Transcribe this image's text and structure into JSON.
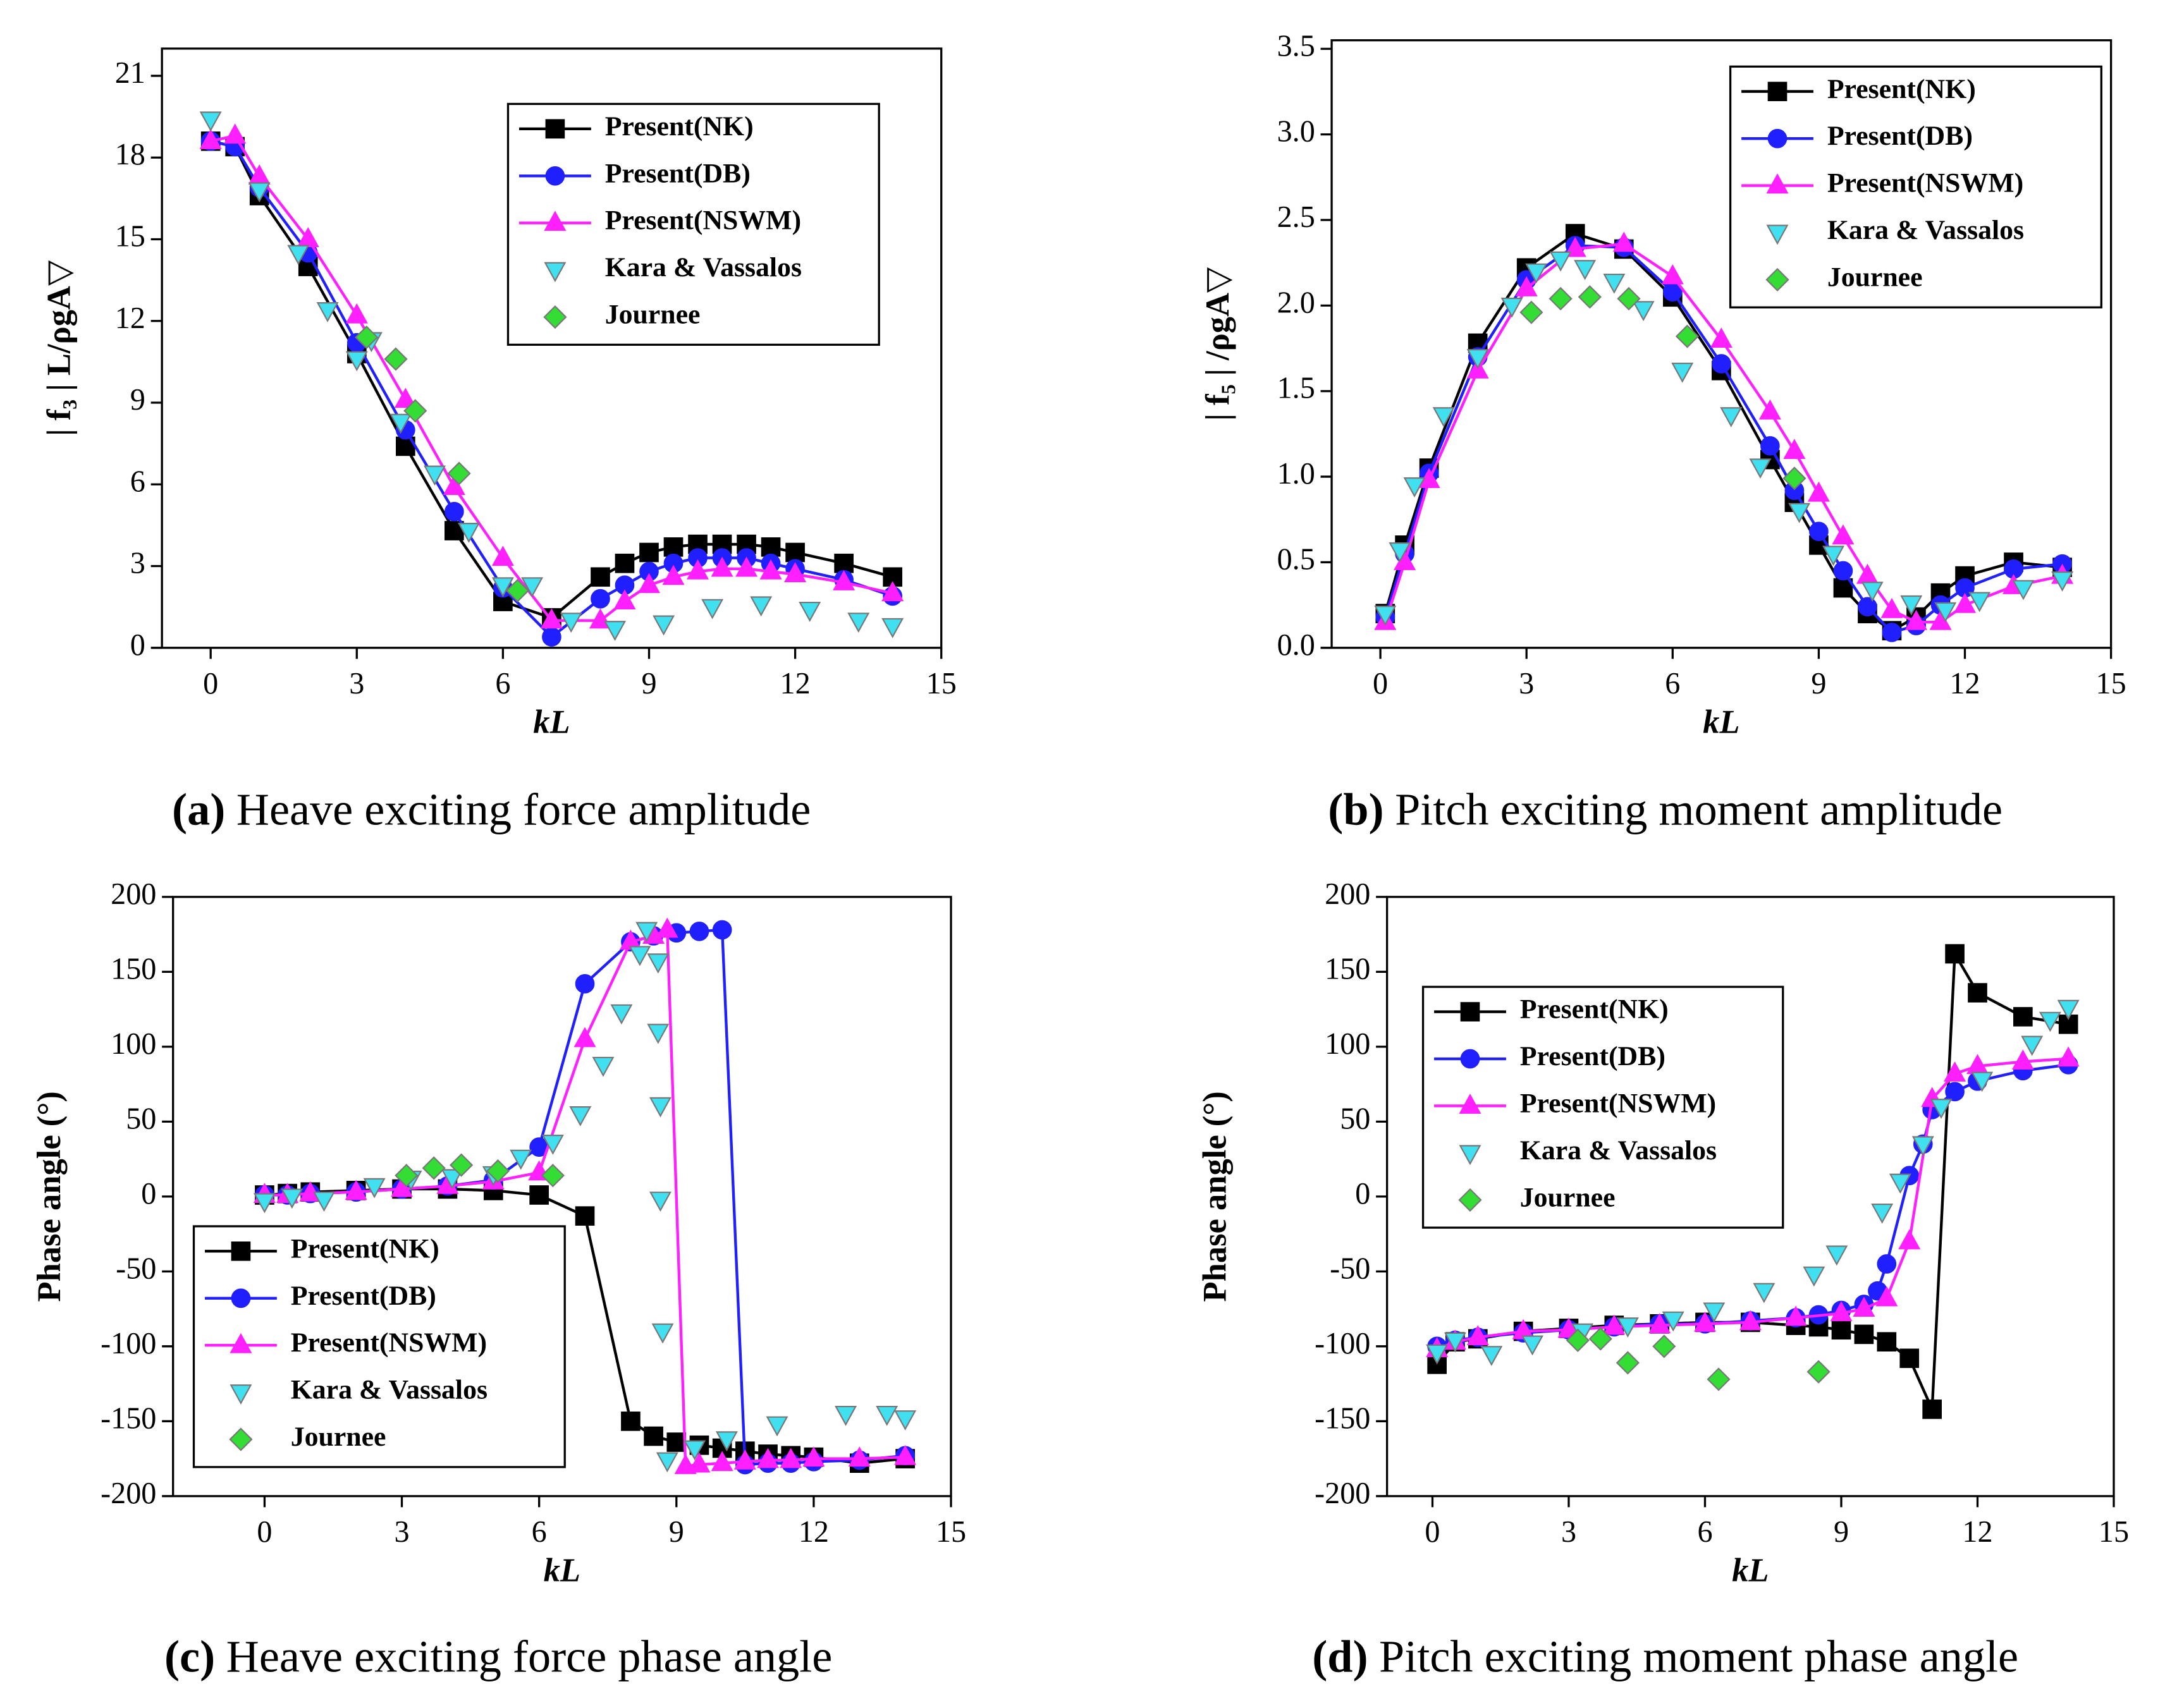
{
  "chart_data": [
    {
      "type": "line",
      "caption_label": "(a)",
      "caption": "Heave exciting force amplitude",
      "x_label": "kL",
      "y_label": "| f₃ | L/ρgA▽",
      "xlim": [
        -1,
        15
      ],
      "xticks": [
        0,
        3,
        6,
        9,
        12,
        15
      ],
      "ylim": [
        0,
        22
      ],
      "yticks": [
        0,
        3,
        6,
        9,
        12,
        15,
        18,
        21
      ],
      "legend": "upper right",
      "series": [
        {
          "name": "Present(NK)",
          "color": "#000000",
          "marker": "square",
          "line": true,
          "x": [
            0,
            0.5,
            1,
            2,
            3,
            4,
            5,
            6,
            7,
            8,
            8.5,
            9,
            9.5,
            10,
            10.5,
            11,
            11.5,
            12,
            13,
            14
          ],
          "values": [
            18.6,
            18.4,
            16.6,
            14.0,
            10.8,
            7.4,
            4.3,
            1.7,
            1.1,
            2.6,
            3.1,
            3.5,
            3.7,
            3.8,
            3.8,
            3.8,
            3.7,
            3.5,
            3.1,
            2.6
          ]
        },
        {
          "name": "Present(DB)",
          "color": "#1f1fff",
          "marker": "circle",
          "line": true,
          "x": [
            0,
            0.5,
            1,
            2,
            3,
            4,
            5,
            6,
            7,
            8,
            8.5,
            9,
            9.5,
            10,
            10.5,
            11,
            11.5,
            12,
            13,
            14
          ],
          "values": [
            18.6,
            18.4,
            16.9,
            14.5,
            11.2,
            8.0,
            5.0,
            2.2,
            0.4,
            1.8,
            2.3,
            2.8,
            3.1,
            3.3,
            3.3,
            3.3,
            3.1,
            2.9,
            2.5,
            1.9
          ]
        },
        {
          "name": "Present(NSWM)",
          "color": "#ff1fff",
          "marker": "triangle",
          "line": true,
          "x": [
            0,
            0.5,
            1,
            2,
            3,
            4,
            5,
            6,
            7,
            8,
            8.5,
            9,
            9.5,
            10,
            10.5,
            11,
            11.5,
            12,
            13,
            14
          ],
          "values": [
            18.6,
            18.8,
            17.3,
            15.0,
            12.2,
            9.1,
            5.9,
            3.3,
            1.0,
            1.0,
            1.7,
            2.3,
            2.6,
            2.8,
            2.9,
            2.9,
            2.8,
            2.7,
            2.4,
            2.0
          ]
        },
        {
          "name": "Kara & Vassalos",
          "color": "#40e0f0",
          "marker": "triangle-down",
          "line": false,
          "x": [
            0,
            1,
            1.8,
            2.4,
            3,
            3.3,
            3.9,
            4.6,
            5.3,
            6,
            6.6,
            7.4,
            8.3,
            9.3,
            10.3,
            11.3,
            12.3,
            13.3,
            14
          ],
          "values": [
            19.4,
            16.8,
            14.5,
            12.4,
            10.6,
            11.3,
            8.3,
            6.4,
            4.3,
            2.3,
            2.3,
            1.0,
            0.7,
            0.9,
            1.5,
            1.6,
            1.4,
            1.0,
            0.8
          ]
        },
        {
          "name": "Journee",
          "color": "#33dd33",
          "marker": "diamond",
          "line": false,
          "x": [
            3.2,
            3.8,
            4.2,
            5.1,
            6.3
          ],
          "values": [
            11.4,
            10.6,
            8.7,
            6.4,
            2.1
          ]
        }
      ]
    },
    {
      "type": "line",
      "caption_label": "(b)",
      "caption": "Pitch exciting moment amplitude",
      "x_label": "kL",
      "y_label": "| f₅ | /ρgA▽",
      "xlim": [
        -1,
        15
      ],
      "xticks": [
        0,
        3,
        6,
        9,
        12,
        15
      ],
      "ylim": [
        0,
        3.55
      ],
      "yticks": [
        {
          "value": 0,
          "label": "0.0"
        },
        0.5,
        {
          "value": 1,
          "label": "1.0"
        },
        1.5,
        {
          "value": 2,
          "label": "2.0"
        },
        2.5,
        {
          "value": 3,
          "label": "3.0"
        },
        3.5
      ],
      "legend": "upper right",
      "series": [
        {
          "name": "Present(NK)",
          "color": "#000000",
          "marker": "square",
          "line": true,
          "x": [
            0.1,
            0.5,
            1,
            2,
            3,
            4,
            5,
            6,
            7,
            8,
            8.5,
            9,
            9.5,
            10,
            10.5,
            11,
            11.5,
            12,
            13,
            14
          ],
          "values": [
            0.2,
            0.6,
            1.05,
            1.78,
            2.22,
            2.42,
            2.33,
            2.05,
            1.62,
            1.1,
            0.85,
            0.6,
            0.35,
            0.2,
            0.1,
            0.18,
            0.32,
            0.42,
            0.5,
            0.47
          ]
        },
        {
          "name": "Present(DB)",
          "color": "#1f1fff",
          "marker": "circle",
          "line": true,
          "x": [
            0.1,
            0.5,
            1,
            2,
            3,
            4,
            5,
            6,
            7,
            8,
            8.5,
            9,
            9.5,
            10,
            10.5,
            11,
            11.5,
            12,
            13,
            14
          ],
          "values": [
            0.18,
            0.55,
            1.02,
            1.7,
            2.15,
            2.35,
            2.34,
            2.08,
            1.66,
            1.18,
            0.92,
            0.68,
            0.45,
            0.24,
            0.09,
            0.13,
            0.25,
            0.35,
            0.46,
            0.49
          ]
        },
        {
          "name": "Present(NSWM)",
          "color": "#ff1fff",
          "marker": "triangle",
          "line": true,
          "x": [
            0.1,
            0.5,
            1,
            2,
            3,
            4,
            5,
            6,
            7,
            8,
            8.5,
            9,
            9.5,
            10,
            10.5,
            11,
            11.5,
            12,
            13,
            14
          ],
          "values": [
            0.15,
            0.5,
            0.98,
            1.62,
            2.1,
            2.33,
            2.36,
            2.17,
            1.8,
            1.38,
            1.15,
            0.9,
            0.65,
            0.42,
            0.22,
            0.15,
            0.15,
            0.25,
            0.36,
            0.42
          ]
        },
        {
          "name": "Kara & Vassalos",
          "color": "#40e0f0",
          "marker": "triangle-down",
          "line": false,
          "x": [
            0.1,
            0.4,
            0.7,
            1.3,
            2,
            2.7,
            3.2,
            3.7,
            4.2,
            4.8,
            5.4,
            6.2,
            7.2,
            7.8,
            8.6,
            9.3,
            10.1,
            10.9,
            11.6,
            12.3,
            13.2,
            14
          ],
          "values": [
            0.2,
            0.57,
            0.95,
            1.36,
            1.7,
            2.0,
            2.2,
            2.27,
            2.22,
            2.14,
            1.98,
            1.62,
            1.36,
            1.06,
            0.8,
            0.55,
            0.34,
            0.26,
            0.22,
            0.28,
            0.35,
            0.4
          ]
        },
        {
          "name": "Journee",
          "color": "#33dd33",
          "marker": "diamond",
          "line": false,
          "x": [
            3.1,
            3.7,
            4.3,
            5.1,
            6.3,
            8.5
          ],
          "values": [
            1.96,
            2.04,
            2.05,
            2.04,
            1.82,
            0.99
          ]
        }
      ]
    },
    {
      "type": "line",
      "caption_label": "(c)",
      "caption": "Heave exciting force phase angle",
      "x_label": "kL",
      "y_label": "Phase angle (°)",
      "xlim": [
        -2,
        15
      ],
      "xticks": [
        0,
        3,
        6,
        9,
        12,
        15
      ],
      "ylim": [
        -200,
        200
      ],
      "yticks": [
        -200,
        -150,
        -100,
        -50,
        0,
        50,
        100,
        150,
        200
      ],
      "legend": "lower left",
      "series": [
        {
          "name": "Present(NK)",
          "color": "#000000",
          "marker": "square",
          "line": true,
          "x": [
            0,
            0.5,
            1,
            2,
            3,
            4,
            5,
            6,
            7,
            8,
            8.5,
            9,
            9.5,
            10,
            10.5,
            11,
            11.5,
            12,
            13,
            14
          ],
          "values": [
            1,
            2,
            3,
            4,
            5,
            5,
            4,
            1,
            -13,
            -150,
            -160,
            -164,
            -166,
            -168,
            -170,
            -172,
            -173,
            -174,
            -178,
            -175
          ]
        },
        {
          "name": "Present(DB)",
          "color": "#1f1fff",
          "marker": "circle",
          "line": true,
          "x": [
            0,
            0.5,
            1,
            2,
            3,
            4,
            5,
            6,
            7,
            8,
            8.5,
            9,
            9.5,
            10,
            10.5,
            11,
            11.5,
            12,
            13,
            14
          ],
          "values": [
            1,
            1,
            2,
            3,
            5,
            7,
            11,
            33,
            142,
            170,
            174,
            176,
            177,
            178,
            -179,
            -178,
            -178,
            -177,
            -176,
            -173
          ]
        },
        {
          "name": "Present(NSWM)",
          "color": "#ff1fff",
          "marker": "triangle",
          "line": true,
          "x": [
            0,
            0.5,
            1,
            2,
            3,
            4,
            5,
            6,
            7,
            8,
            8.5,
            8.8,
            9.2,
            9.5,
            10,
            10.5,
            11,
            11.5,
            12,
            13,
            14
          ],
          "values": [
            1,
            1,
            2,
            3,
            5,
            7,
            10,
            16,
            105,
            170,
            174,
            178,
            -180,
            -179,
            -178,
            -177,
            -176,
            -176,
            -175,
            -175,
            -174
          ]
        },
        {
          "name": "Kara & Vassalos",
          "color": "#40e0f0",
          "marker": "triangle-down",
          "line": false,
          "x": [
            0,
            0.6,
            1.3,
            2.4,
            3.2,
            4.1,
            5,
            5.6,
            6.3,
            6.9,
            7.4,
            7.8,
            8.2,
            8.35,
            8.6,
            8.6,
            8.65,
            8.65,
            8.7,
            8.8,
            9.4,
            10.1,
            11.2,
            12.7,
            13.6,
            14
          ],
          "values": [
            -3,
            0,
            -2,
            7,
            12,
            13,
            15,
            26,
            36,
            55,
            88,
            123,
            162,
            178,
            157,
            110,
            61,
            -2,
            -90,
            -176,
            -168,
            -162,
            -152,
            -145,
            -145,
            -148
          ]
        },
        {
          "name": "Journee",
          "color": "#33dd33",
          "marker": "diamond",
          "line": false,
          "x": [
            3.1,
            3.7,
            4.3,
            5.1,
            6.3
          ],
          "values": [
            14,
            19,
            21,
            17,
            14
          ]
        }
      ]
    },
    {
      "type": "line",
      "caption_label": "(d)",
      "caption": "Pitch exciting moment phase angle",
      "x_label": "kL",
      "y_label": "Phase angle (°)",
      "xlim": [
        -1,
        15
      ],
      "xticks": [
        0,
        3,
        6,
        9,
        12,
        15
      ],
      "ylim": [
        -200,
        200
      ],
      "yticks": [
        -200,
        -150,
        -100,
        -50,
        0,
        50,
        100,
        150,
        200
      ],
      "legend": "upper left",
      "series": [
        {
          "name": "Present(NK)",
          "color": "#000000",
          "marker": "square",
          "line": true,
          "x": [
            0.1,
            0.5,
            1,
            2,
            3,
            4,
            5,
            6,
            7,
            8,
            8.5,
            9,
            9.5,
            10,
            10.5,
            11,
            11.5,
            12,
            13,
            14
          ],
          "values": [
            -112,
            -97,
            -95,
            -90,
            -88,
            -86,
            -85,
            -84,
            -84,
            -86,
            -87,
            -89,
            -92,
            -97,
            -108,
            -142,
            162,
            136,
            120,
            115
          ]
        },
        {
          "name": "Present(DB)",
          "color": "#1f1fff",
          "marker": "circle",
          "line": true,
          "x": [
            0.1,
            0.5,
            1,
            2,
            3,
            4,
            5,
            6,
            7,
            8,
            8.5,
            9,
            9.5,
            9.8,
            10,
            10.5,
            10.8,
            11,
            11.5,
            12,
            13,
            14
          ],
          "values": [
            -100,
            -96,
            -94,
            -91,
            -89,
            -87,
            -85,
            -85,
            -83,
            -81,
            -79,
            -76,
            -72,
            -63,
            -45,
            14,
            35,
            58,
            70,
            77,
            84,
            88
          ]
        },
        {
          "name": "Present(NSWM)",
          "color": "#ff1fff",
          "marker": "triangle",
          "line": true,
          "x": [
            0.1,
            0.5,
            1,
            2,
            3,
            4,
            5,
            6,
            7,
            8,
            9,
            9.5,
            10,
            10.5,
            11,
            11.5,
            12,
            13,
            14
          ],
          "values": [
            -102,
            -97,
            -94,
            -90,
            -89,
            -87,
            -86,
            -85,
            -84,
            -81,
            -78,
            -75,
            -68,
            -30,
            65,
            82,
            87,
            90,
            92
          ]
        },
        {
          "name": "Kara & Vassalos",
          "color": "#40e0f0",
          "marker": "triangle-down",
          "line": false,
          "x": [
            0.1,
            0.5,
            1.3,
            2.2,
            3.3,
            4.3,
            5.3,
            6.2,
            7.3,
            8.4,
            8.9,
            9.9,
            10.3,
            10.8,
            11.2,
            12.1,
            13.2,
            13.6,
            14
          ],
          "values": [
            -104,
            -96,
            -105,
            -98,
            -90,
            -86,
            -82,
            -76,
            -63,
            -52,
            -38,
            -10,
            10,
            35,
            60,
            78,
            102,
            118,
            126
          ]
        },
        {
          "name": "Journee",
          "color": "#33dd33",
          "marker": "diamond",
          "line": false,
          "x": [
            3.2,
            3.7,
            4.3,
            5.1,
            6.3,
            8.5
          ],
          "values": [
            -96,
            -95,
            -111,
            -100,
            -122,
            -117
          ]
        }
      ]
    }
  ]
}
